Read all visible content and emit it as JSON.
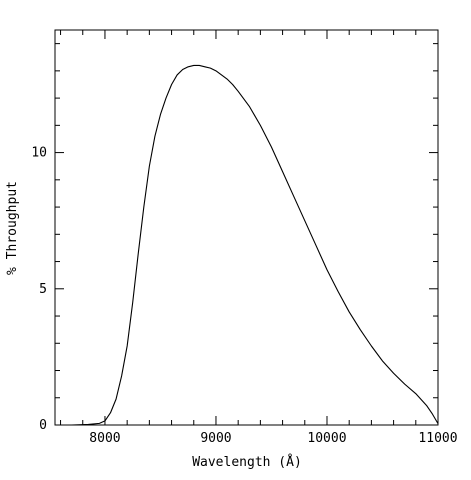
{
  "chart_data": {
    "type": "line",
    "title": "",
    "xlabel": "Wavelength (Å)",
    "ylabel": "% Throughput",
    "xlim": [
      7550,
      11000
    ],
    "ylim": [
      0,
      14.5
    ],
    "xticks_major": [
      8000,
      9000,
      10000,
      11000
    ],
    "xticks_minor_step": 200,
    "xtick_labels": [
      "8000",
      "9000",
      "10000",
      "11000"
    ],
    "yticks_major": [
      0,
      5,
      10
    ],
    "yticks_minor_step": 1,
    "ytick_labels": [
      "0",
      "5",
      "10"
    ],
    "grid": false,
    "legend": "none",
    "series": [
      {
        "x": [
          7550,
          7700,
          7850,
          7950,
          8000,
          8050,
          8100,
          8150,
          8200,
          8250,
          8300,
          8350,
          8400,
          8450,
          8500,
          8550,
          8600,
          8650,
          8700,
          8750,
          8800,
          8850,
          8900,
          8950,
          9000,
          9050,
          9100,
          9150,
          9200,
          9300,
          9400,
          9500,
          9600,
          9700,
          9800,
          9900,
          10000,
          10100,
          10200,
          10300,
          10400,
          10500,
          10600,
          10700,
          10800,
          10900,
          10950,
          11000
        ],
        "y": [
          0.0,
          0.0,
          0.02,
          0.06,
          0.15,
          0.45,
          0.95,
          1.8,
          2.9,
          4.5,
          6.3,
          8.0,
          9.5,
          10.6,
          11.4,
          12.0,
          12.5,
          12.85,
          13.05,
          13.15,
          13.2,
          13.2,
          13.15,
          13.1,
          13.0,
          12.85,
          12.7,
          12.5,
          12.25,
          11.7,
          11.0,
          10.2,
          9.3,
          8.4,
          7.5,
          6.6,
          5.7,
          4.9,
          4.15,
          3.5,
          2.9,
          2.35,
          1.9,
          1.5,
          1.15,
          0.7,
          0.4,
          0.05
        ]
      }
    ]
  }
}
